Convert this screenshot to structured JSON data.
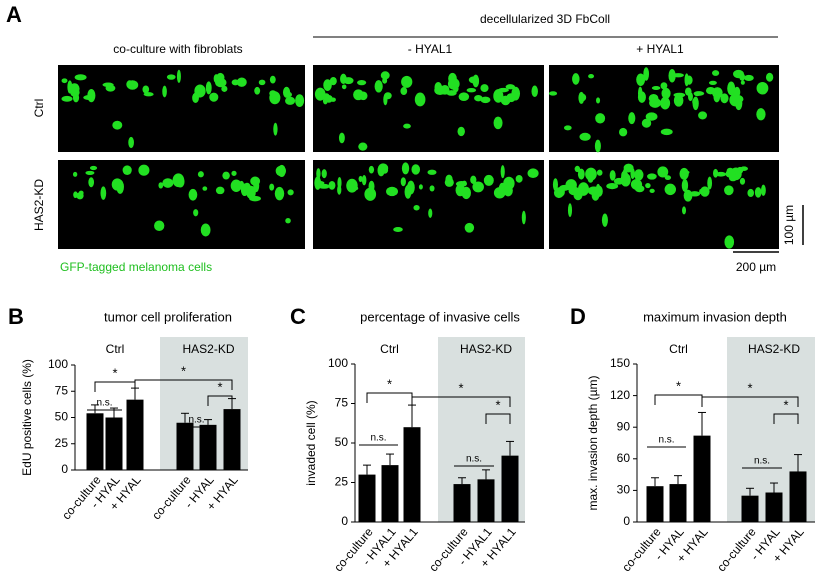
{
  "panel_a": {
    "letter": "A",
    "header": "decellularized 3D FbColl",
    "columns": [
      "co-culture with fibroblats",
      "- HYAL1",
      "+ HYAL1"
    ],
    "rows": [
      "Ctrl",
      "HAS2-KD"
    ],
    "caption": "GFP-tagged melanoma cells",
    "scale_bars": [
      "100 µm",
      "200 µm"
    ]
  },
  "chart_data": [
    {
      "type": "bar",
      "panel": "B",
      "title": "tumor cell proliferation",
      "y_label": "EdU positive cells (%)",
      "categories": [
        "co-culture",
        "- HYAL",
        "+ HYAL"
      ],
      "series": [
        {
          "name": "Ctrl",
          "color": "#000000",
          "values": [
            54,
            50,
            67
          ],
          "errors": [
            8,
            9,
            11
          ]
        },
        {
          "name": "HAS2-KD",
          "color": "#000000",
          "values": [
            45,
            43,
            58
          ],
          "errors": [
            9,
            5,
            10
          ]
        }
      ],
      "ylim": [
        0,
        100
      ],
      "yticks": [
        0,
        25,
        50,
        75,
        100
      ],
      "significance": [
        "*",
        "*",
        "n.s.",
        "n.s.",
        "*"
      ]
    },
    {
      "type": "bar",
      "panel": "C",
      "title": "percentage of invasive cells",
      "y_label": "invaded cell (%)",
      "categories": [
        "co-culture",
        "- HYAL1",
        "+ HYAL1"
      ],
      "series": [
        {
          "name": "Ctrl",
          "color": "#000000",
          "values": [
            30,
            36,
            60
          ],
          "errors": [
            6,
            7,
            14
          ]
        },
        {
          "name": "HAS2-KD",
          "color": "#000000",
          "values": [
            24,
            27,
            42
          ],
          "errors": [
            4,
            6,
            9
          ]
        }
      ],
      "ylim": [
        0,
        100
      ],
      "yticks": [
        0,
        25,
        50,
        75,
        100
      ],
      "significance": [
        "*",
        "*",
        "n.s.",
        "n.s.",
        "*"
      ]
    },
    {
      "type": "bar",
      "panel": "D",
      "title": "maximum invasion depth",
      "y_label": "max. invasion depth (µm)",
      "categories": [
        "co-culture",
        "- HYAL",
        "+ HYAL"
      ],
      "series": [
        {
          "name": "Ctrl",
          "color": "#000000",
          "values": [
            34,
            36,
            82
          ],
          "errors": [
            8,
            8,
            22
          ]
        },
        {
          "name": "HAS2-KD",
          "color": "#000000",
          "values": [
            25,
            28,
            48
          ],
          "errors": [
            7,
            9,
            16
          ]
        }
      ],
      "ylim": [
        0,
        150
      ],
      "yticks": [
        0,
        30,
        60,
        90,
        120,
        150
      ],
      "significance": [
        "*",
        "*",
        "n.s.",
        "n.s.",
        "*"
      ]
    }
  ]
}
